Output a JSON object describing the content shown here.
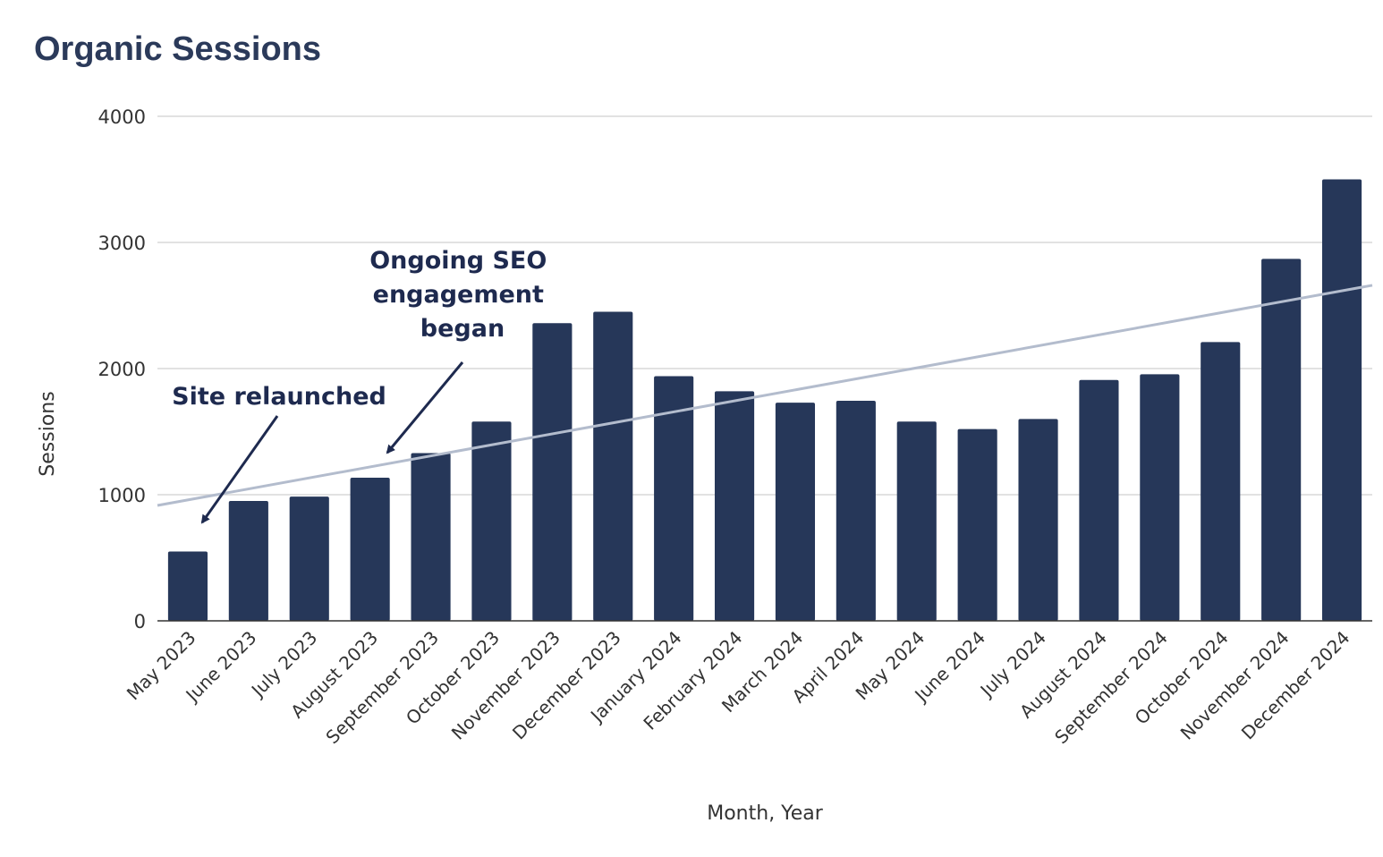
{
  "chart_data": {
    "type": "bar",
    "title": "Organic Sessions",
    "xlabel": "Month, Year",
    "ylabel": "Sessions",
    "ylim": [
      0,
      4000
    ],
    "yticks": [
      "0",
      "1000",
      "2000",
      "3000",
      "4000"
    ],
    "grid": true,
    "categories": [
      "May 2023",
      "June 2023",
      "July 2023",
      "August 2023",
      "September 2023",
      "October 2023",
      "November 2023",
      "December 2023",
      "January 2024",
      "February 2024",
      "March 2024",
      "April 2024",
      "May 2024",
      "June 2024",
      "July 2024",
      "August 2024",
      "September 2024",
      "October 2024",
      "November 2024",
      "December 2024"
    ],
    "values": [
      550,
      950,
      985,
      1135,
      1330,
      1580,
      2360,
      2450,
      1940,
      1820,
      1730,
      1745,
      1580,
      1520,
      1600,
      1910,
      1955,
      2210,
      2870,
      3500
    ],
    "trendline": {
      "y_start": 915,
      "y_end": 2660
    },
    "colors": {
      "bar": "#263759",
      "trendline": "#b3bccd",
      "grid": "#d9d9d9",
      "annotation": "#1e2a4f"
    },
    "annotations": [
      {
        "lines": [
          "Site relaunched"
        ],
        "target": "May 2023"
      },
      {
        "lines": [
          "Ongoing SEO",
          "engagement",
          "began"
        ],
        "target": "August 2023"
      }
    ]
  }
}
